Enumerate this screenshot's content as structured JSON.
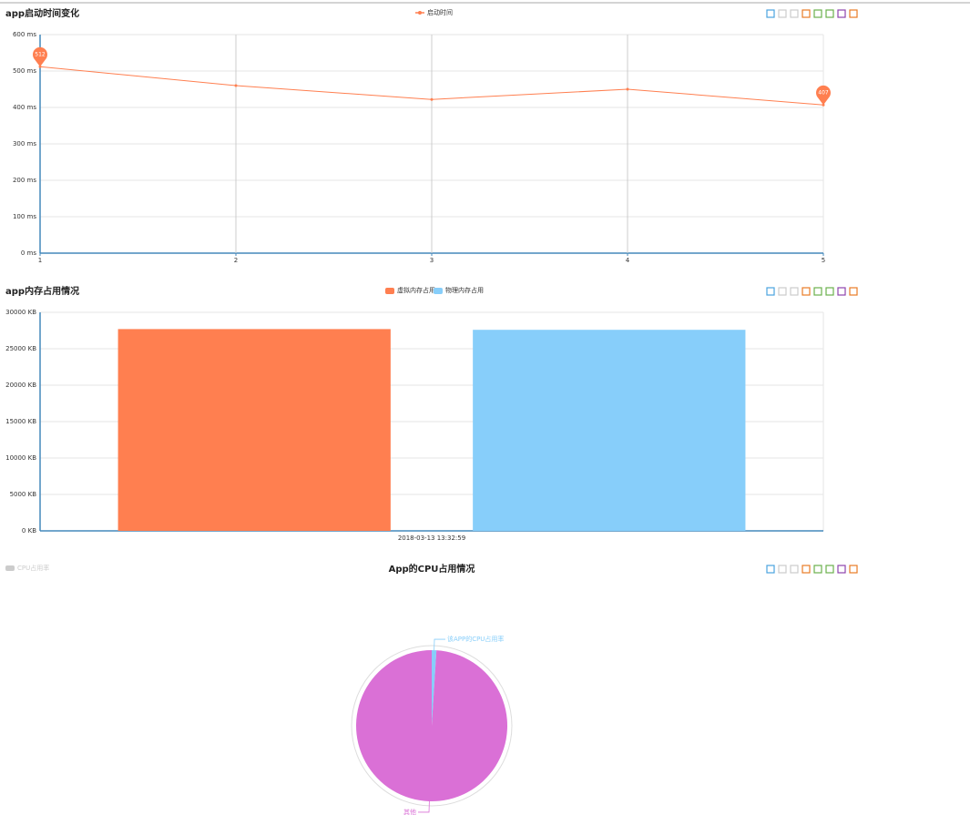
{
  "chart_data": [
    {
      "type": "line",
      "title": "app启动时间变化",
      "categories": [
        1,
        2,
        3,
        4,
        5
      ],
      "series": [
        {
          "name": "启动时间",
          "color": "#ff7f50",
          "values": [
            512,
            460,
            422,
            450,
            407
          ]
        }
      ],
      "ylim": [
        0,
        600
      ],
      "yticks": [
        {
          "value": 0,
          "label": "0 ms"
        },
        {
          "value": 100,
          "label": "100 ms"
        },
        {
          "value": 200,
          "label": "200 ms"
        },
        {
          "value": 300,
          "label": "300 ms"
        },
        {
          "value": 400,
          "label": "400 ms"
        },
        {
          "value": 500,
          "label": "500 ms"
        },
        {
          "value": 600,
          "label": "600 ms"
        }
      ],
      "grid": true
    },
    {
      "type": "bar",
      "title": "app内存占用情况",
      "categories": [
        "2018-03-13 13:32:59"
      ],
      "series": [
        {
          "name": "虚拟内存占用",
          "color": "#ff7f50",
          "values": [
            27700
          ]
        },
        {
          "name": "物理内存占用",
          "color": "#87cefa",
          "values": [
            27600
          ]
        }
      ],
      "ylim": [
        0,
        30000
      ],
      "yticks": [
        {
          "value": 0,
          "label": "0 KB"
        },
        {
          "value": 5000,
          "label": "5000 KB"
        },
        {
          "value": 10000,
          "label": "10000 KB"
        },
        {
          "value": 15000,
          "label": "15000 KB"
        },
        {
          "value": 20000,
          "label": "20000 KB"
        },
        {
          "value": 25000,
          "label": "25000 KB"
        },
        {
          "value": 30000,
          "label": "30000 KB"
        }
      ],
      "grid": true
    },
    {
      "type": "pie",
      "title": "App的CPU占用情况",
      "name": "CPU占用率",
      "categories": [
        "该APP的CPU占用率",
        "其他"
      ],
      "values": [
        1,
        99
      ],
      "colors": [
        "#87cefa",
        "#da70d6"
      ]
    }
  ]
}
